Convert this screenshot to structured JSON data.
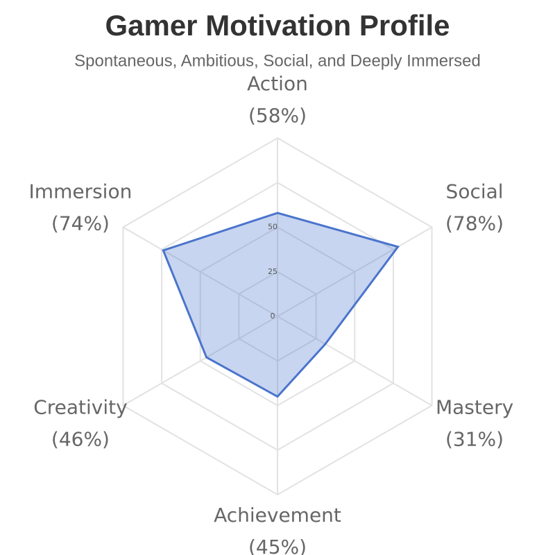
{
  "chart_data": {
    "type": "radar",
    "title": "Gamer Motivation Profile",
    "subtitle": "Spontaneous, Ambitious, Social, and Deeply Immersed",
    "categories": [
      "Action",
      "Social",
      "Mastery",
      "Achievement",
      "Creativity",
      "Immersion"
    ],
    "values": [
      58,
      78,
      31,
      45,
      46,
      74
    ],
    "value_labels": [
      "(58%)",
      "(78%)",
      "(31%)",
      "(45%)",
      "(46%)",
      "(74%)"
    ],
    "color": "#4a74cc",
    "ylim": [
      0,
      100
    ],
    "yticks": [
      0,
      25,
      50
    ],
    "grid": true
  }
}
